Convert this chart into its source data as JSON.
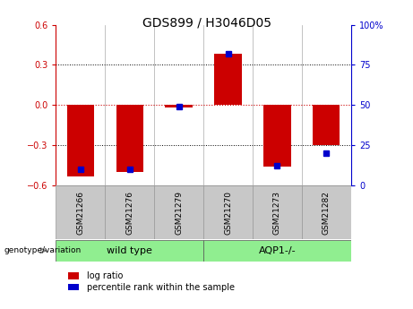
{
  "title": "GDS899 / H3046D05",
  "samples": [
    "GSM21266",
    "GSM21276",
    "GSM21279",
    "GSM21270",
    "GSM21273",
    "GSM21282"
  ],
  "log_ratios": [
    -0.53,
    -0.5,
    -0.02,
    0.38,
    -0.46,
    -0.3
  ],
  "percentile_ranks": [
    10,
    10,
    49,
    82,
    12,
    20
  ],
  "group_wt_label": "wild type",
  "group_aqp_label": "AQP1-/-",
  "group_color": "#90EE90",
  "left_axis_color": "#CC0000",
  "right_axis_color": "#0000CC",
  "bar_color": "#CC0000",
  "dot_color": "#0000CC",
  "ylim_left": [
    -0.6,
    0.6
  ],
  "ylim_right": [
    0,
    100
  ],
  "yticks_left": [
    -0.6,
    -0.3,
    0,
    0.3,
    0.6
  ],
  "yticks_right": [
    0,
    25,
    50,
    75,
    100
  ],
  "ytick_labels_right": [
    "0",
    "25",
    "50",
    "75",
    "100%"
  ],
  "hline_color": "#CC0000",
  "grid_color": "black",
  "genotype_label": "genotype/variation",
  "legend_log_ratio": "log ratio",
  "legend_percentile": "percentile rank within the sample",
  "gray_box_color": "#C8C8C8",
  "bar_width": 0.55
}
